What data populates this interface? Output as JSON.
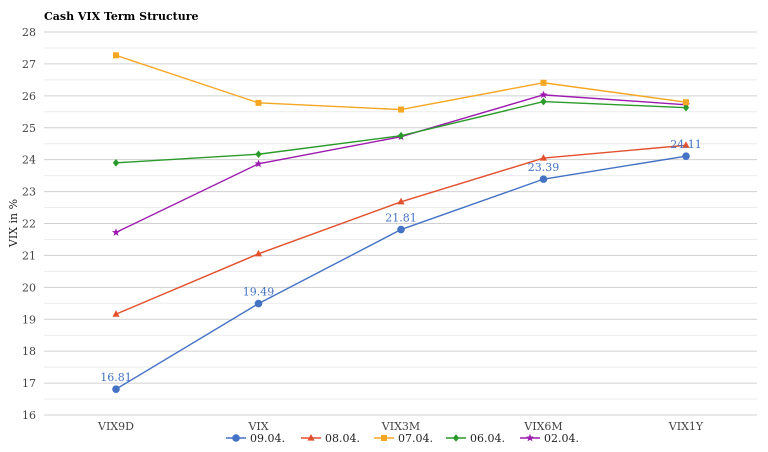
{
  "chart_data": {
    "type": "line",
    "title": "Cash VIX Term Structure",
    "ylabel": "VIX in %",
    "xlabel": "",
    "categories": [
      "VIX9D",
      "VIX",
      "VIX3M",
      "VIX6M",
      "VIX1Y"
    ],
    "ylim": [
      16,
      28
    ],
    "yticks": [
      16,
      17,
      18,
      19,
      20,
      21,
      22,
      23,
      24,
      25,
      26,
      27,
      28
    ],
    "grid": true,
    "legend": "bottom",
    "series": [
      {
        "name": "09.04.",
        "color": "#4472C4",
        "marker": "circle",
        "values": [
          16.81,
          19.49,
          21.81,
          23.39,
          24.11
        ],
        "labels": [
          "16.81",
          "19.49",
          "21.81",
          "23.39",
          "24.11"
        ]
      },
      {
        "name": "08.04.",
        "color": "#E2502E",
        "marker": "triangle",
        "values": [
          19.16,
          21.05,
          22.68,
          24.05,
          24.45
        ]
      },
      {
        "name": "07.04.",
        "color": "#F5A623",
        "marker": "square",
        "values": [
          27.27,
          25.78,
          25.57,
          26.41,
          25.8
        ]
      },
      {
        "name": "06.04.",
        "color": "#2A9A2A",
        "marker": "diamond",
        "values": [
          23.9,
          24.17,
          24.75,
          25.82,
          25.63
        ]
      },
      {
        "name": "02.04.",
        "color": "#9C1BAE",
        "marker": "star",
        "values": [
          21.72,
          23.87,
          24.72,
          26.03,
          25.72
        ]
      }
    ]
  }
}
